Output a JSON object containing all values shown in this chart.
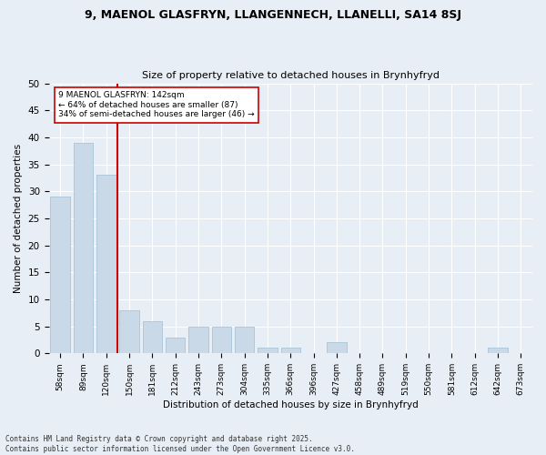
{
  "title1": "9, MAENOL GLASFRYN, LLANGENNECH, LLANELLI, SA14 8SJ",
  "title2": "Size of property relative to detached houses in Brynhyfryd",
  "xlabel": "Distribution of detached houses by size in Brynhyfryd",
  "ylabel": "Number of detached properties",
  "categories": [
    "58sqm",
    "89sqm",
    "120sqm",
    "150sqm",
    "181sqm",
    "212sqm",
    "243sqm",
    "273sqm",
    "304sqm",
    "335sqm",
    "366sqm",
    "396sqm",
    "427sqm",
    "458sqm",
    "489sqm",
    "519sqm",
    "550sqm",
    "581sqm",
    "612sqm",
    "642sqm",
    "673sqm"
  ],
  "values": [
    29,
    39,
    33,
    8,
    6,
    3,
    5,
    5,
    5,
    1,
    1,
    0,
    2,
    0,
    0,
    0,
    0,
    0,
    0,
    1,
    0
  ],
  "bar_color": "#c9d9e8",
  "bar_edge_color": "#a8c4d8",
  "vline_x": 2.5,
  "vline_color": "#cc0000",
  "annotation_text": "9 MAENOL GLASFRYN: 142sqm\n← 64% of detached houses are smaller (87)\n34% of semi-detached houses are larger (46) →",
  "annotation_box_color": "#ffffff",
  "annotation_box_edge": "#cc0000",
  "ylim": [
    0,
    50
  ],
  "yticks": [
    0,
    5,
    10,
    15,
    20,
    25,
    30,
    35,
    40,
    45,
    50
  ],
  "background_color": "#e8eef5",
  "grid_color": "#ffffff",
  "footer": "Contains HM Land Registry data © Crown copyright and database right 2025.\nContains public sector information licensed under the Open Government Licence v3.0."
}
